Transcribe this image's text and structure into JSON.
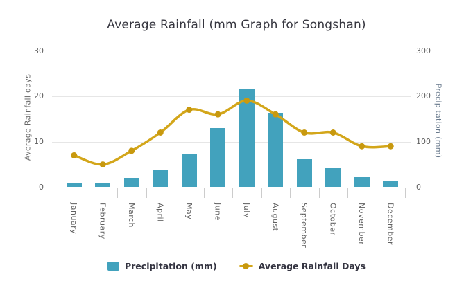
{
  "title": "Average Rainfall (mm Graph for Songshan)",
  "chart_data": {
    "type": "combo",
    "subtype": "bar+line",
    "categories": [
      "January",
      "February",
      "March",
      "April",
      "May",
      "June",
      "July",
      "August",
      "September",
      "October",
      "November",
      "December"
    ],
    "series": [
      {
        "name": "Precipitation (mm)",
        "type": "bar",
        "y_axis": "right",
        "color": "#42a2bd",
        "values": [
          8,
          9,
          20,
          38,
          72,
          130,
          215,
          163,
          62,
          42,
          22,
          13
        ]
      },
      {
        "name": "Average Rainfall Days",
        "type": "line",
        "y_axis": "left",
        "color": "#d3a61a",
        "marker_color": "#c8990f",
        "values": [
          7,
          5,
          8,
          12,
          17,
          16,
          19,
          16,
          12,
          12,
          9,
          9
        ]
      }
    ],
    "left_axis": {
      "title": "Average Rainfall days",
      "ticks": [
        0,
        10,
        20,
        30
      ],
      "range": [
        0,
        30
      ]
    },
    "right_axis": {
      "title": "Precipitation (mm)",
      "ticks": [
        0,
        100,
        200,
        300
      ],
      "range": [
        0,
        300
      ]
    },
    "legend": {
      "position": "bottom",
      "items": [
        "Precipitation (mm)",
        "Average Rainfall Days"
      ]
    },
    "grid": "horizontal",
    "x_label_rotation": 90
  },
  "colors": {
    "bar": "#42a2bd",
    "line": "#d3a61a",
    "marker": "#c8990f",
    "grid": "#e6e6e6",
    "axis_text": "#606060",
    "title_text": "#36363f",
    "right_axis_title": "#68798c",
    "legend_text": "#333340"
  }
}
